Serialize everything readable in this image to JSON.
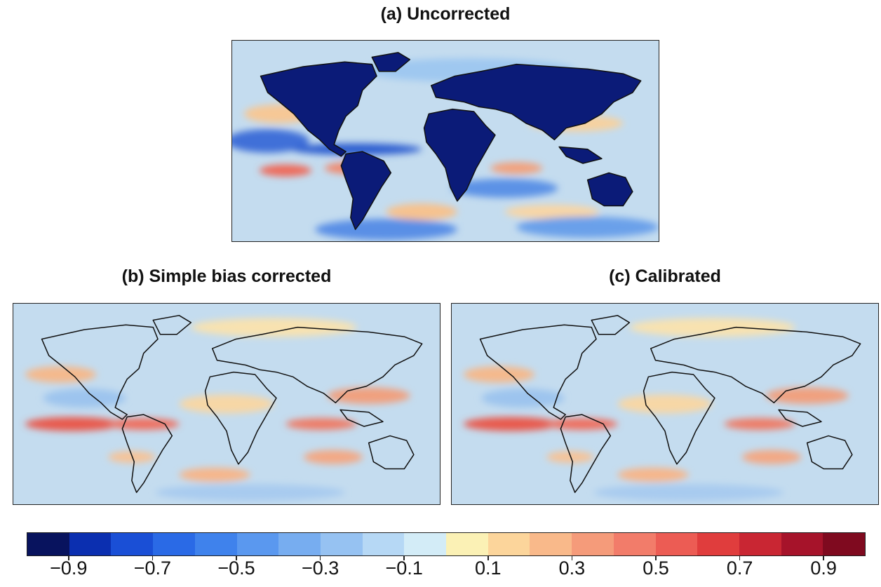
{
  "panels": [
    {
      "id": "a",
      "title": "(a) Uncorrected"
    },
    {
      "id": "b",
      "title": "(b) Simple bias corrected"
    },
    {
      "id": "c",
      "title": "(c) Calibrated"
    }
  ],
  "colorbar": {
    "colors": [
      "#08135e",
      "#0b2fb0",
      "#1a4fd6",
      "#2a6ae6",
      "#3f82ec",
      "#5a98ef",
      "#77adf0",
      "#96c2f2",
      "#b6d8f5",
      "#d3ecf7",
      "#fbf1b5",
      "#fcd59b",
      "#f9b98a",
      "#f59b7a",
      "#f27c6a",
      "#ec5c54",
      "#e03d3d",
      "#c92633",
      "#a6132a",
      "#7f0a1f"
    ],
    "range": [
      -1.0,
      1.0
    ],
    "tick_labels": [
      "−0.9",
      "−0.7",
      "−0.5",
      "−0.3",
      "−0.1",
      "0.1",
      "0.3",
      "0.5",
      "0.7",
      "0.9"
    ],
    "tick_values": [
      -0.9,
      -0.7,
      -0.5,
      -0.3,
      -0.1,
      0.1,
      0.3,
      0.5,
      0.7,
      0.9
    ]
  },
  "fields": {
    "ocean_base": "#c2dcef",
    "land_uncorrected": "#0b1b78",
    "coastline": "#111111"
  }
}
